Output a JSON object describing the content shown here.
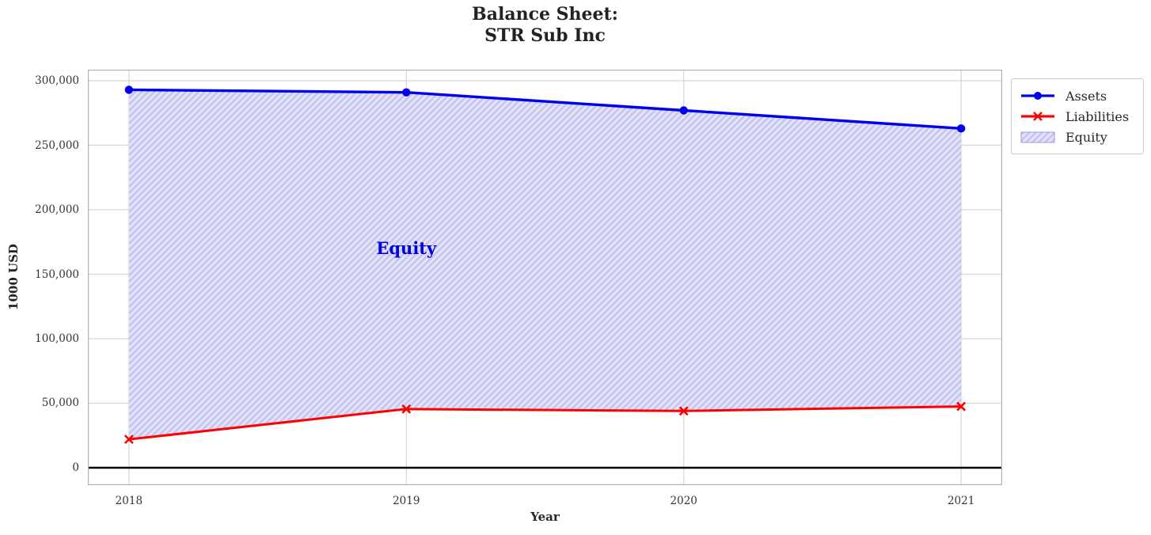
{
  "chart_data": {
    "type": "line",
    "title": "Balance Sheet:\nSTR Sub Inc",
    "xlabel": "Year",
    "ylabel": "1000 USD",
    "x": [
      2018,
      2019,
      2020,
      2021
    ],
    "xtick_labels": [
      "2018",
      "2019",
      "2020",
      "2021"
    ],
    "series": [
      {
        "name": "Assets",
        "color": "#0000ee",
        "marker": "circle",
        "values": [
          293000,
          291000,
          277000,
          263000
        ]
      },
      {
        "name": "Liabilities",
        "color": "#ff0000",
        "marker": "x",
        "values": [
          22000,
          45500,
          44000,
          47500
        ]
      }
    ],
    "area": {
      "name": "Equity",
      "between": [
        "Assets",
        "Liabilities"
      ],
      "fill": "#e3e3f9",
      "hatch_color": "#c5c5ef",
      "edge_color": "#9b9be0",
      "equity_values": [
        271000,
        245500,
        233000,
        215500
      ]
    },
    "annotation": {
      "text": "Equity",
      "x": 2019,
      "y": 170000,
      "color": "#0000e0"
    },
    "yticks": [
      0,
      50000,
      100000,
      150000,
      200000,
      250000,
      300000
    ],
    "ytick_labels": [
      "0",
      "50,000",
      "100,000",
      "150,000",
      "200,000",
      "250,000",
      "300,000"
    ],
    "xlim": [
      2017.852,
      2021.148
    ],
    "ylim": [
      -13500,
      308600
    ],
    "grid": true,
    "zero_line": true,
    "style": {
      "grid_color": "#d6d6d6",
      "spine_color": "#b3b3b3",
      "zero_line_color": "#000000",
      "title_color": "#222222",
      "text_color": "#262626"
    },
    "legend": {
      "position": "outside-top-right",
      "entries": [
        "Assets",
        "Liabilities",
        "Equity"
      ]
    }
  }
}
